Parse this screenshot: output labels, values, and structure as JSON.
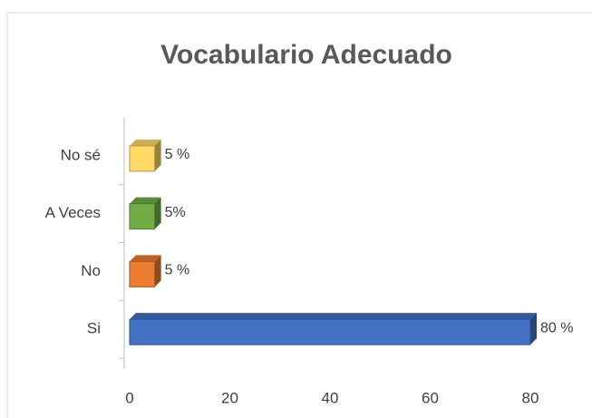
{
  "chart_data": {
    "type": "bar",
    "orientation": "horizontal",
    "title": "Vocabulario Adecuado",
    "categories": [
      "Si",
      "No",
      "A Veces",
      "No sé"
    ],
    "values": [
      80,
      5,
      5,
      5
    ],
    "value_labels": [
      "80 %",
      "5 %",
      "5%",
      "5 %"
    ],
    "colors": [
      "#4472c4",
      "#ed7d31",
      "#70ad47",
      "#ffd966"
    ],
    "xlim": [
      0,
      80
    ],
    "xticks": [
      0,
      20,
      40,
      60,
      80
    ]
  }
}
